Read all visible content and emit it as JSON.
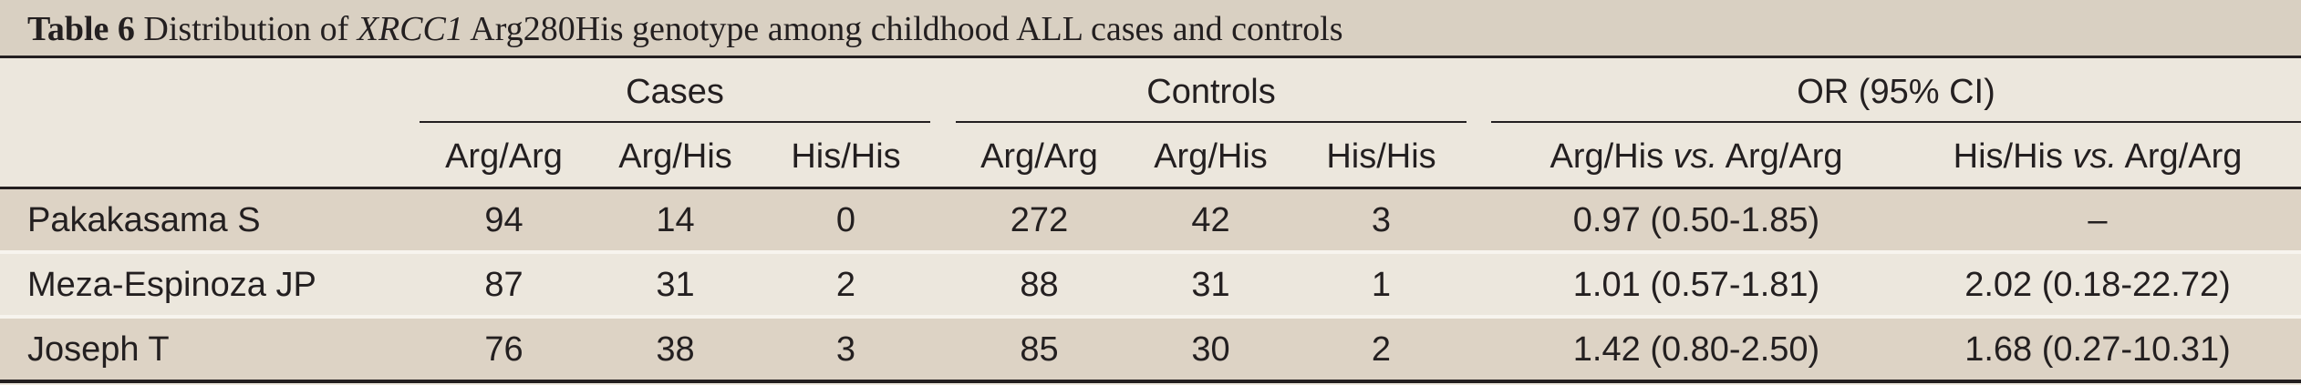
{
  "table": {
    "title_label": "Table 6",
    "title_pre": "Distribution of",
    "title_gene": "XRCC1",
    "title_post": "Arg280His genotype among childhood ALL cases and controls",
    "groups": {
      "cases": "Cases",
      "controls": "Controls",
      "or": "OR (95% CI)"
    },
    "subheaders": {
      "cases_argarg": "Arg/Arg",
      "cases_arghis": "Arg/His",
      "cases_hishis": "His/His",
      "controls_argarg": "Arg/Arg",
      "controls_arghis": "Arg/His",
      "controls_hishis": "His/His",
      "or1_a": "Arg/His",
      "or1_vs": "vs.",
      "or1_b": "Arg/Arg",
      "or2_a": "His/His",
      "or2_vs": "vs.",
      "or2_b": "Arg/Arg"
    },
    "rows": [
      {
        "study": "Pakakasama S",
        "c_aa": "94",
        "c_ah": "14",
        "c_hh": "0",
        "k_aa": "272",
        "k_ah": "42",
        "k_hh": "3",
        "or1": "0.97 (0.50-1.85)",
        "or2": "–"
      },
      {
        "study": "Meza-Espinoza JP",
        "c_aa": "87",
        "c_ah": "31",
        "c_hh": "2",
        "k_aa": "88",
        "k_ah": "31",
        "k_hh": "1",
        "or1": "1.01 (0.57-1.81)",
        "or2": "2.02 (0.18-22.72)"
      },
      {
        "study": "Joseph T",
        "c_aa": "76",
        "c_ah": "38",
        "c_hh": "3",
        "k_aa": "85",
        "k_ah": "30",
        "k_hh": "2",
        "or1": "1.42 (0.80-2.50)",
        "or2": "1.68 (0.27-10.31)"
      }
    ]
  }
}
